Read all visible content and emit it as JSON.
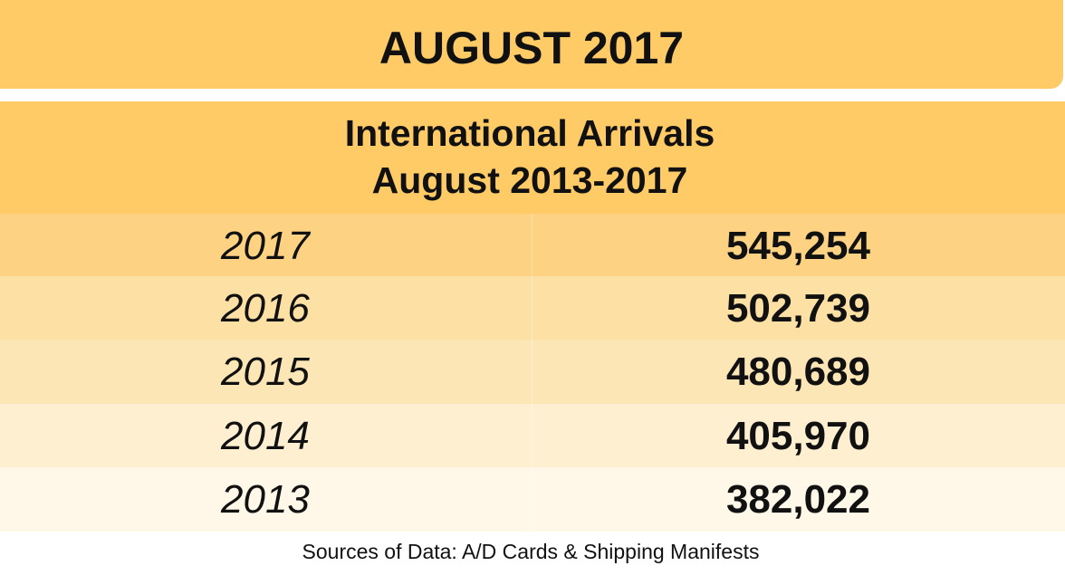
{
  "header": {
    "title": "AUGUST 2017"
  },
  "table": {
    "title": [
      "International Arrivals",
      "August 2013-2017"
    ],
    "rows": [
      [
        "2017",
        "545,254"
      ],
      [
        "2016",
        "502,739"
      ],
      [
        "2015",
        "480,689"
      ],
      [
        "2014",
        "405,970"
      ],
      [
        "2013",
        "382,022"
      ]
    ]
  },
  "footer": {
    "source": "Sources of Data: A/D Cards & Shipping Manifests"
  }
}
